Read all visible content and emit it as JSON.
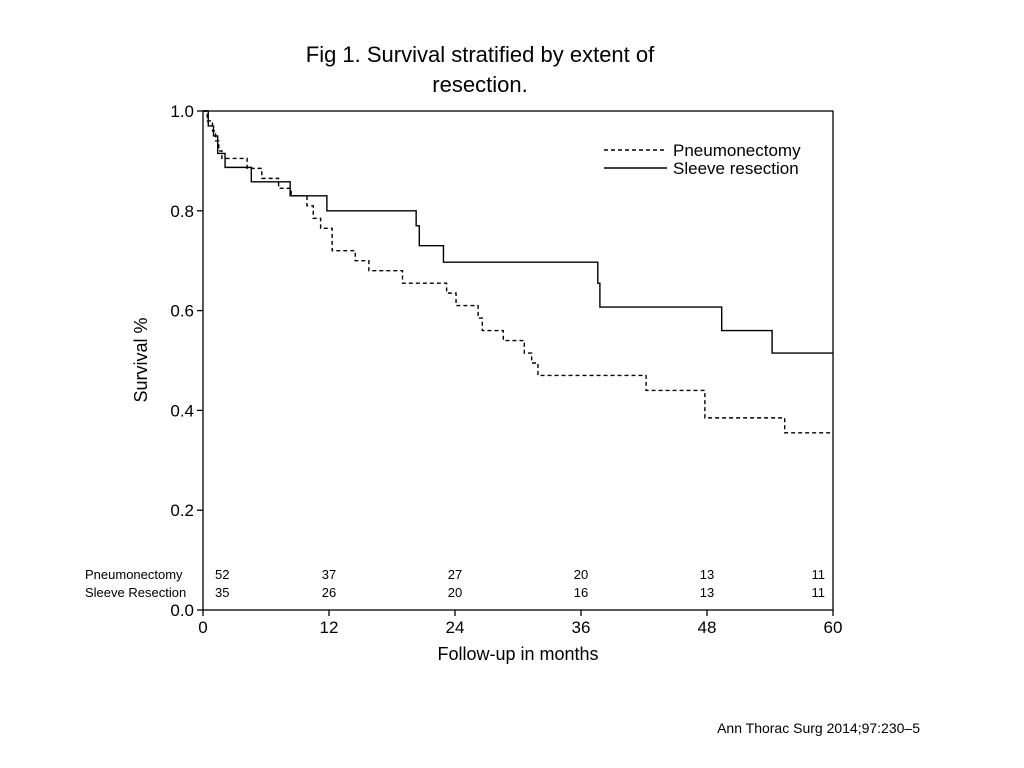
{
  "slide": {
    "title_line1": "Fig 1. Survival stratified by extent of",
    "title_line2": "resection.",
    "citation": "Ann Thorac Surg 2014;97:230–5"
  },
  "chart_data": {
    "type": "line",
    "style": "step",
    "title": "Fig 1. Survival stratified by extent of resection.",
    "xlabel": "Follow-up in months",
    "ylabel": "Survival %",
    "xlim": [
      0,
      60
    ],
    "ylim": [
      0.0,
      1.0
    ],
    "x_ticks": [
      0,
      12,
      24,
      36,
      48,
      60
    ],
    "x_tick_labels": [
      "0",
      "12",
      "24",
      "36",
      "48",
      "60"
    ],
    "y_ticks": [
      0.0,
      0.2,
      0.4,
      0.6,
      0.8,
      1.0
    ],
    "y_tick_labels": [
      "0.0",
      "0.2",
      "0.4",
      "0.6",
      "0.8",
      "1.0"
    ],
    "grid": false,
    "legend_position": "top-right",
    "series": [
      {
        "name": "Pneumonectomy",
        "line_style": "dashed",
        "color": "#000000",
        "points": [
          [
            0,
            1.0
          ],
          [
            0.4,
            0.98
          ],
          [
            0.9,
            0.96
          ],
          [
            1.2,
            0.94
          ],
          [
            1.5,
            0.92
          ],
          [
            1.8,
            0.905
          ],
          [
            4.2,
            0.885
          ],
          [
            5.6,
            0.865
          ],
          [
            7.2,
            0.845
          ],
          [
            8.4,
            0.83
          ],
          [
            9.9,
            0.81
          ],
          [
            10.5,
            0.785
          ],
          [
            11.2,
            0.765
          ],
          [
            12.3,
            0.72
          ],
          [
            14.5,
            0.7
          ],
          [
            15.8,
            0.68
          ],
          [
            19.0,
            0.655
          ],
          [
            23.2,
            0.635
          ],
          [
            24.1,
            0.61
          ],
          [
            26.2,
            0.585
          ],
          [
            26.6,
            0.56
          ],
          [
            28.6,
            0.54
          ],
          [
            30.6,
            0.515
          ],
          [
            31.3,
            0.495
          ],
          [
            31.9,
            0.47
          ],
          [
            42.2,
            0.44
          ],
          [
            47.8,
            0.385
          ],
          [
            55.4,
            0.355
          ],
          [
            60,
            0.355
          ]
        ]
      },
      {
        "name": "Sleeve resection",
        "line_style": "solid",
        "color": "#000000",
        "points": [
          [
            0,
            1.0
          ],
          [
            0.5,
            0.97
          ],
          [
            1.0,
            0.95
          ],
          [
            1.4,
            0.915
          ],
          [
            2.1,
            0.887
          ],
          [
            4.6,
            0.858
          ],
          [
            8.3,
            0.83
          ],
          [
            11.8,
            0.8
          ],
          [
            20.3,
            0.77
          ],
          [
            20.6,
            0.73
          ],
          [
            22.9,
            0.697
          ],
          [
            37.6,
            0.655
          ],
          [
            37.8,
            0.607
          ],
          [
            49.4,
            0.56
          ],
          [
            54.2,
            0.515
          ],
          [
            60,
            0.515
          ]
        ]
      }
    ],
    "numbers_at_risk": {
      "x": [
        0,
        12,
        24,
        36,
        48,
        60
      ],
      "rows": [
        {
          "label": "Pneumonectomy",
          "values": [
            "52",
            "37",
            "27",
            "20",
            "13",
            "11"
          ]
        },
        {
          "label": "Sleeve Resection",
          "values": [
            "35",
            "26",
            "20",
            "16",
            "13",
            "11"
          ]
        }
      ]
    }
  }
}
